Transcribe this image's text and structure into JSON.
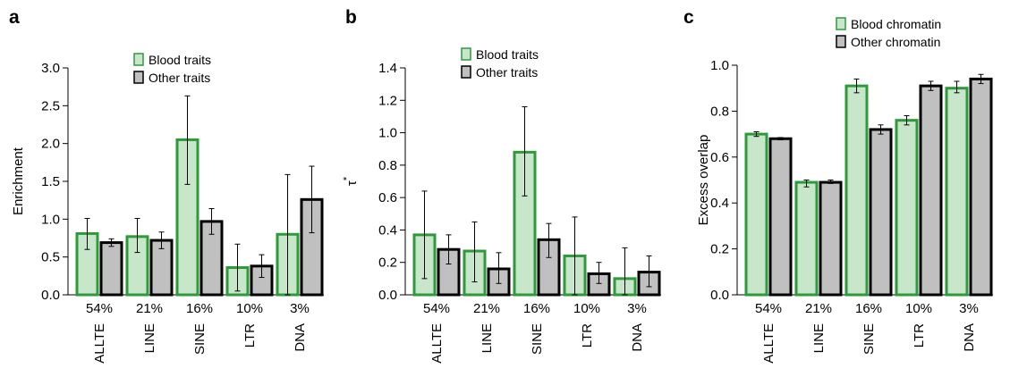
{
  "panels": [
    {
      "letter": "a"
    },
    {
      "letter": "b"
    },
    {
      "letter": "c"
    }
  ],
  "colors": {
    "blood_fill": "#c8e6c9",
    "blood_stroke": "#2e9a3a",
    "other_fill": "#c0c0c0",
    "other_stroke": "#000000"
  },
  "chart_data": [
    {
      "type": "bar",
      "panel": "a",
      "title": "",
      "xlabel": "",
      "ylabel": "Enrichment",
      "categories": [
        "ALLTE",
        "LINE",
        "SINE",
        "LTR",
        "DNA"
      ],
      "category_percents": [
        "54%",
        "21%",
        "16%",
        "10%",
        "3%"
      ],
      "ylim": [
        0,
        3.0
      ],
      "yticks": [
        "0.0",
        "0.5",
        "1.0",
        "1.5",
        "2.0",
        "2.5",
        "3.0"
      ],
      "ytick_values": [
        0,
        0.5,
        1.0,
        1.5,
        2.0,
        2.5,
        3.0
      ],
      "legend_position": "top",
      "series": [
        {
          "name": "Blood traits",
          "values": [
            0.81,
            0.77,
            2.05,
            0.36,
            0.8
          ],
          "err_low": [
            0.6,
            0.56,
            1.46,
            0.05,
            0.0
          ],
          "err_high": [
            1.01,
            1.01,
            2.63,
            0.67,
            1.59
          ]
        },
        {
          "name": "Other traits",
          "values": [
            0.69,
            0.72,
            0.97,
            0.38,
            1.26
          ],
          "err_low": [
            0.64,
            0.61,
            0.8,
            0.23,
            0.82
          ],
          "err_high": [
            0.74,
            0.83,
            1.14,
            0.53,
            1.7
          ]
        }
      ]
    },
    {
      "type": "bar",
      "panel": "b",
      "title": "",
      "xlabel": "",
      "ylabel": "τ",
      "ylabel_superscript": "*",
      "categories": [
        "ALLTE",
        "LINE",
        "SINE",
        "LTR",
        "DNA"
      ],
      "category_percents": [
        "54%",
        "21%",
        "16%",
        "10%",
        "3%"
      ],
      "ylim": [
        0,
        1.4
      ],
      "yticks": [
        "0.0",
        "0.2",
        "0.4",
        "0.6",
        "0.8",
        "1.0",
        "1.2",
        "1.4"
      ],
      "ytick_values": [
        0,
        0.2,
        0.4,
        0.6,
        0.8,
        1.0,
        1.2,
        1.4
      ],
      "legend_position": "top",
      "series": [
        {
          "name": "Blood traits",
          "values": [
            0.37,
            0.27,
            0.88,
            0.24,
            0.1
          ],
          "err_low": [
            0.1,
            0.08,
            0.61,
            0.0,
            0.0
          ],
          "err_high": [
            0.64,
            0.45,
            1.16,
            0.48,
            0.29
          ]
        },
        {
          "name": "Other traits",
          "values": [
            0.28,
            0.16,
            0.34,
            0.13,
            0.14
          ],
          "err_low": [
            0.19,
            0.07,
            0.23,
            0.07,
            0.05
          ],
          "err_high": [
            0.37,
            0.26,
            0.44,
            0.2,
            0.24
          ]
        }
      ]
    },
    {
      "type": "bar",
      "panel": "c",
      "title": "",
      "xlabel": "",
      "ylabel": "Excess overlap",
      "categories": [
        "ALLTE",
        "LINE",
        "SINE",
        "LTR",
        "DNA"
      ],
      "category_percents": [
        "54%",
        "21%",
        "16%",
        "10%",
        "3%"
      ],
      "ylim": [
        0,
        1.0
      ],
      "yticks": [
        "0.0",
        "0.2",
        "0.4",
        "0.6",
        "0.8",
        "1.0"
      ],
      "ytick_values": [
        0,
        0.2,
        0.4,
        0.6,
        0.8,
        1.0
      ],
      "legend_position": "top",
      "series": [
        {
          "name": "Blood chromatin",
          "values": [
            0.7,
            0.49,
            0.91,
            0.76,
            0.9
          ],
          "err_low": [
            0.69,
            0.47,
            0.88,
            0.74,
            0.88
          ],
          "err_high": [
            0.71,
            0.5,
            0.94,
            0.78,
            0.93
          ]
        },
        {
          "name": "Other chromatin",
          "values": [
            0.68,
            0.49,
            0.72,
            0.91,
            0.94
          ],
          "err_low": [
            0.675,
            0.485,
            0.7,
            0.89,
            0.92
          ],
          "err_high": [
            0.685,
            0.5,
            0.74,
            0.93,
            0.96
          ]
        }
      ]
    }
  ]
}
